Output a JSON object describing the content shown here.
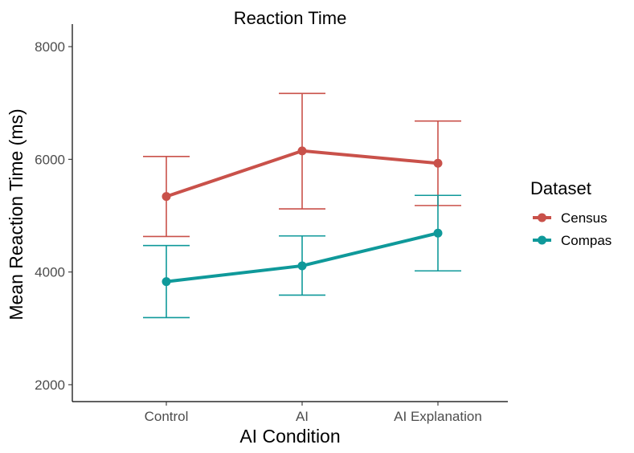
{
  "chart_data": {
    "type": "line",
    "title": "Reaction Time",
    "xlabel": "AI Condition",
    "ylabel": "Mean Reaction Time (ms)",
    "categories": [
      "Control",
      "AI",
      "AI Explanation"
    ],
    "ylim": [
      1700,
      8400
    ],
    "yticks": [
      2000,
      4000,
      6000,
      8000
    ],
    "legend": {
      "title": "Dataset",
      "position": "right"
    },
    "series": [
      {
        "name": "Census",
        "color": "#c9514a",
        "values": [
          5340,
          6150,
          5930
        ],
        "error_low": [
          4630,
          5120,
          5180
        ],
        "error_high": [
          6050,
          7170,
          6680
        ]
      },
      {
        "name": "Compas",
        "color": "#0f999a",
        "values": [
          3830,
          4110,
          4690
        ],
        "error_low": [
          3190,
          3590,
          4020
        ],
        "error_high": [
          4470,
          4640,
          5360
        ]
      }
    ]
  }
}
